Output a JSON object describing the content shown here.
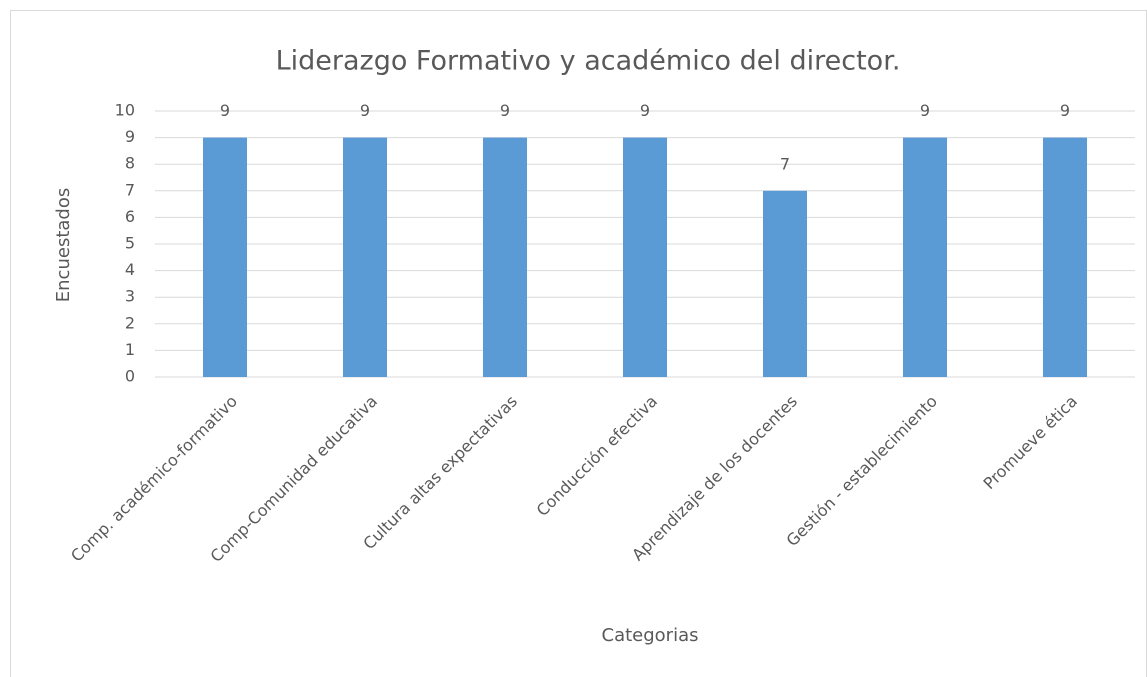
{
  "chart_data": {
    "type": "bar",
    "title": "Liderazgo Formativo y académico del director.",
    "x_label": "Categorias",
    "y_label": "Encuestados",
    "categories": [
      "Comp. académico-formativo",
      "Comp-Comunidad educativa",
      "Cultura altas expectativas",
      "Conducción efectiva",
      "Aprendizaje de los docentes",
      "Gestión - establecimiento",
      "Promueve ética"
    ],
    "values": [
      9,
      9,
      9,
      9,
      7,
      9,
      9
    ],
    "color": "#5b9bd5",
    "ylim": [
      0,
      10
    ],
    "yticks": [
      0,
      1,
      2,
      3,
      4,
      5,
      6,
      7,
      8,
      9,
      10
    ],
    "grid": true,
    "data_labels": true
  }
}
